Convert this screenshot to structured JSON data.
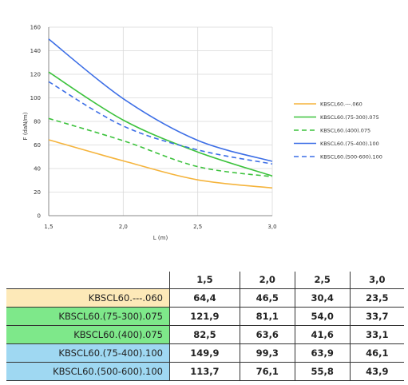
{
  "chart_data": {
    "type": "line",
    "xlabel": "L (m)",
    "ylabel": "F (daN/m)",
    "x": [
      1.5,
      2.0,
      2.5,
      3.0
    ],
    "x_ticks": [
      "1,5",
      "2,0",
      "2,5",
      "3,0"
    ],
    "y_ticks": [
      "0",
      "20",
      "40",
      "60",
      "80",
      "100",
      "120",
      "140",
      "160"
    ],
    "xlim": [
      1.5,
      3.0
    ],
    "ylim": [
      0,
      160
    ],
    "grid": true,
    "legend_position": "right",
    "series": [
      {
        "name": "KBSCL60.---.060",
        "values": [
          64.4,
          46.5,
          30.4,
          23.5
        ],
        "color": "#F5B43C",
        "dash": "solid"
      },
      {
        "name": "KBSCL60.(75-300).075",
        "values": [
          121.9,
          81.1,
          54.0,
          33.7
        ],
        "color": "#3CC23C",
        "dash": "solid"
      },
      {
        "name": "KBSCL60.(400).075",
        "values": [
          82.5,
          63.6,
          41.6,
          33.1
        ],
        "color": "#3CC23C",
        "dash": "dashed"
      },
      {
        "name": "KBSCL60.(75-400).100",
        "values": [
          149.9,
          99.3,
          63.9,
          46.1
        ],
        "color": "#3C6EE6",
        "dash": "solid"
      },
      {
        "name": "KBSCL60.(500-600).100",
        "values": [
          113.7,
          76.1,
          55.8,
          43.9
        ],
        "color": "#3C6EE6",
        "dash": "dashed"
      }
    ]
  },
  "table": {
    "headers": [
      "1,5",
      "2,0",
      "2,5",
      "3,0"
    ],
    "rows": [
      {
        "name": "KBSCL60.---.060",
        "bg": "#FDE9B8",
        "values": [
          "64,4",
          "46,5",
          "30,4",
          "23,5"
        ]
      },
      {
        "name": "KBSCL60.(75-300).075",
        "bg": "#7EE88A",
        "values": [
          "121,9",
          "81,1",
          "54,0",
          "33,7"
        ]
      },
      {
        "name": "KBSCL60.(400).075",
        "bg": "#7EE88A",
        "values": [
          "82,5",
          "63,6",
          "41,6",
          "33,1"
        ]
      },
      {
        "name": "KBSCL60.(75-400).100",
        "bg": "#9FD8F2",
        "values": [
          "149,9",
          "99,3",
          "63,9",
          "46,1"
        ]
      },
      {
        "name": "KBSCL60.(500-600).100",
        "bg": "#9FD8F2",
        "values": [
          "113,7",
          "76,1",
          "55,8",
          "43,9"
        ]
      }
    ]
  }
}
